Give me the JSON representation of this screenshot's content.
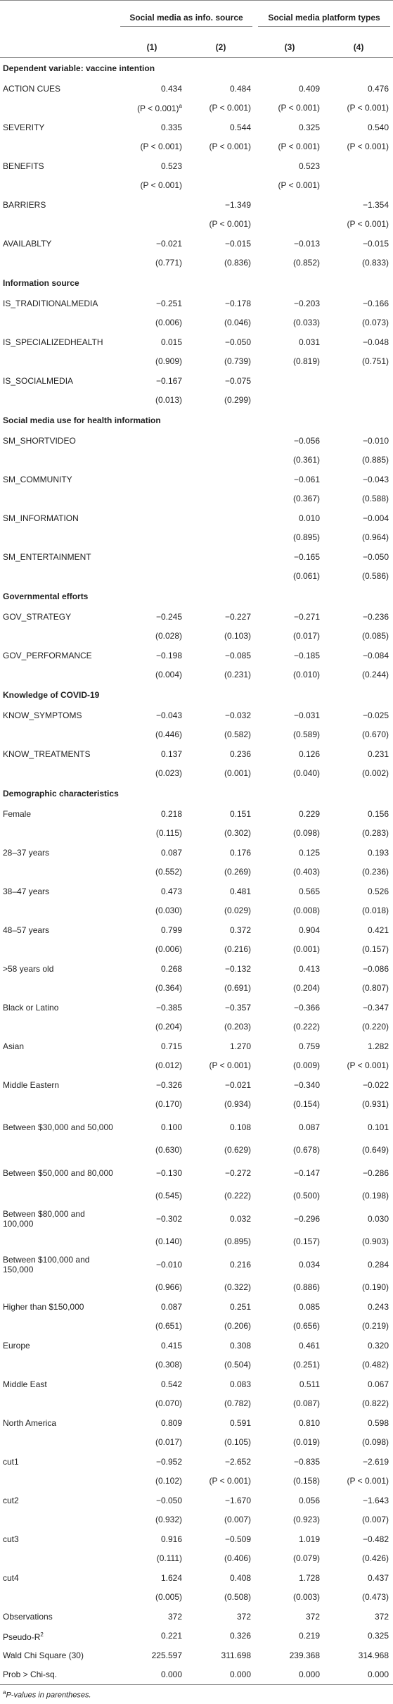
{
  "header": {
    "groups": [
      {
        "label": "Social media as info. source"
      },
      {
        "label": "Social media platform types"
      }
    ],
    "columns": [
      "(1)",
      "(2)",
      "(3)",
      "(4)"
    ]
  },
  "table": {
    "sections": [
      {
        "title": "Dependent variable: vaccine intention",
        "rows": [
          {
            "label": "ACTION CUES",
            "coef": [
              "0.434",
              "0.484",
              "0.409",
              "0.476"
            ],
            "p": [
              "(P < 0.001)",
              "(P < 0.001)",
              "(P < 0.001)",
              "(P < 0.001)"
            ],
            "p_sup": [
              "a",
              null,
              null,
              null
            ]
          },
          {
            "label": "SEVERITY",
            "coef": [
              "0.335",
              "0.544",
              "0.325",
              "0.540"
            ],
            "p": [
              "(P < 0.001)",
              "(P < 0.001)",
              "(P < 0.001)",
              "(P < 0.001)"
            ]
          },
          {
            "label": "BENEFITS",
            "coef": [
              "0.523",
              null,
              "0.523",
              null
            ],
            "p": [
              "(P < 0.001)",
              null,
              "(P < 0.001)",
              null
            ]
          },
          {
            "label": "BARRIERS",
            "coef": [
              null,
              "−1.349",
              null,
              "−1.354"
            ],
            "p": [
              null,
              "(P < 0.001)",
              null,
              "(P < 0.001)"
            ]
          },
          {
            "label": "AVAILABLTY",
            "coef": [
              "−0.021",
              "−0.015",
              "−0.013",
              "−0.015"
            ],
            "p": [
              "(0.771)",
              "(0.836)",
              "(0.852)",
              "(0.833)"
            ]
          }
        ]
      },
      {
        "title": "Information source",
        "rows": [
          {
            "label": "IS_TRADITIONALMEDIA",
            "coef": [
              "−0.251",
              "−0.178",
              "−0.203",
              "−0.166"
            ],
            "p": [
              "(0.006)",
              "(0.046)",
              "(0.033)",
              "(0.073)"
            ]
          },
          {
            "label": "IS_SPECIALIZEDHEALTH",
            "coef": [
              "0.015",
              "−0.050",
              "0.031",
              "−0.048"
            ],
            "p": [
              "(0.909)",
              "(0.739)",
              "(0.819)",
              "(0.751)"
            ]
          },
          {
            "label": "IS_SOCIALMEDIA",
            "coef": [
              "−0.167",
              "−0.075",
              null,
              null
            ],
            "p": [
              "(0.013)",
              "(0.299)",
              null,
              null
            ]
          }
        ]
      },
      {
        "title": "Social media use for health information",
        "rows": [
          {
            "label": "SM_SHORTVIDEO",
            "coef": [
              null,
              null,
              "−0.056",
              "−0.010"
            ],
            "p": [
              null,
              null,
              "(0.361)",
              "(0.885)"
            ]
          },
          {
            "label": "SM_COMMUNITY",
            "coef": [
              null,
              null,
              "−0.061",
              "−0.043"
            ],
            "p": [
              null,
              null,
              "(0.367)",
              "(0.588)"
            ]
          },
          {
            "label": "SM_INFORMATION",
            "coef": [
              null,
              null,
              "0.010",
              "−0.004"
            ],
            "p": [
              null,
              null,
              "(0.895)",
              "(0.964)"
            ]
          },
          {
            "label": "SM_ENTERTAINMENT",
            "coef": [
              null,
              null,
              "−0.165",
              "−0.050"
            ],
            "p": [
              null,
              null,
              "(0.061)",
              "(0.586)"
            ]
          }
        ]
      },
      {
        "title": "Governmental efforts",
        "rows": [
          {
            "label": "GOV_STRATEGY",
            "coef": [
              "−0.245",
              "−0.227",
              "−0.271",
              "−0.236"
            ],
            "p": [
              "(0.028)",
              "(0.103)",
              "(0.017)",
              "(0.085)"
            ]
          },
          {
            "label": "GOV_PERFORMANCE",
            "coef": [
              "−0.198",
              "−0.085",
              "−0.185",
              "−0.084"
            ],
            "p": [
              "(0.004)",
              "(0.231)",
              "(0.010)",
              "(0.244)"
            ]
          }
        ]
      },
      {
        "title": "Knowledge of COVID-19",
        "rows": [
          {
            "label": "KNOW_SYMPTOMS",
            "coef": [
              "−0.043",
              "−0.032",
              "−0.031",
              "−0.025"
            ],
            "p": [
              "(0.446)",
              "(0.582)",
              "(0.589)",
              "(0.670)"
            ]
          },
          {
            "label": "KNOW_TREATMENTS",
            "coef": [
              "0.137",
              "0.236",
              "0.126",
              "0.231"
            ],
            "p": [
              "(0.023)",
              "(0.001)",
              "(0.040)",
              "(0.002)"
            ]
          }
        ]
      },
      {
        "title": "Demographic characteristics",
        "rows": [
          {
            "label": "Female",
            "coef": [
              "0.218",
              "0.151",
              "0.229",
              "0.156"
            ],
            "p": [
              "(0.115)",
              "(0.302)",
              "(0.098)",
              "(0.283)"
            ]
          },
          {
            "label": "28–37 years",
            "coef": [
              "0.087",
              "0.176",
              "0.125",
              "0.193"
            ],
            "p": [
              "(0.552)",
              "(0.269)",
              "(0.403)",
              "(0.236)"
            ]
          },
          {
            "label": "38–47 years",
            "coef": [
              "0.473",
              "0.481",
              "0.565",
              "0.526"
            ],
            "p": [
              "(0.030)",
              "(0.029)",
              "(0.008)",
              "(0.018)"
            ]
          },
          {
            "label": "48–57 years",
            "coef": [
              "0.799",
              "0.372",
              "0.904",
              "0.421"
            ],
            "p": [
              "(0.006)",
              "(0.216)",
              "(0.001)",
              "(0.157)"
            ]
          },
          {
            "label": ">58 years old",
            "coef": [
              "0.268",
              "−0.132",
              "0.413",
              "−0.086"
            ],
            "p": [
              "(0.364)",
              "(0.691)",
              "(0.204)",
              "(0.807)"
            ]
          },
          {
            "label": "Black or Latino",
            "coef": [
              "−0.385",
              "−0.357",
              "−0.366",
              "−0.347"
            ],
            "p": [
              "(0.204)",
              "(0.203)",
              "(0.222)",
              "(0.220)"
            ]
          },
          {
            "label": "Asian",
            "coef": [
              "0.715",
              "1.270",
              "0.759",
              "1.282"
            ],
            "p": [
              "(0.012)",
              "(P < 0.001)",
              "(0.009)",
              "(P < 0.001)"
            ]
          },
          {
            "label": "Middle Eastern",
            "coef": [
              "−0.326",
              "−0.021",
              "−0.340",
              "−0.022"
            ],
            "p": [
              "(0.170)",
              "(0.934)",
              "(0.154)",
              "(0.931)"
            ]
          },
          {
            "label": "Between $30,000 and 50,000",
            "coef": [
              "0.100",
              "0.108",
              "0.087",
              "0.101"
            ],
            "p": [
              "(0.630)",
              "(0.629)",
              "(0.678)",
              "(0.649)"
            ]
          },
          {
            "label": "Between $50,000 and 80,000",
            "coef": [
              "−0.130",
              "−0.272",
              "−0.147",
              "−0.286"
            ],
            "p": [
              "(0.545)",
              "(0.222)",
              "(0.500)",
              "(0.198)"
            ]
          },
          {
            "label": "Between $80,000 and 100,000",
            "coef": [
              "−0.302",
              "0.032",
              "−0.296",
              "0.030"
            ],
            "p": [
              "(0.140)",
              "(0.895)",
              "(0.157)",
              "(0.903)"
            ]
          },
          {
            "label": "Between $100,000 and 150,000",
            "coef": [
              "−0.010",
              "0.216",
              "0.034",
              "0.284"
            ],
            "p": [
              "(0.966)",
              "(0.322)",
              "(0.886)",
              "(0.190)"
            ]
          },
          {
            "label": "Higher than $150,000",
            "coef": [
              "0.087",
              "0.251",
              "0.085",
              "0.243"
            ],
            "p": [
              "(0.651)",
              "(0.206)",
              "(0.656)",
              "(0.219)"
            ]
          },
          {
            "label": "Europe",
            "coef": [
              "0.415",
              "0.308",
              "0.461",
              "0.320"
            ],
            "p": [
              "(0.308)",
              "(0.504)",
              "(0.251)",
              "(0.482)"
            ]
          },
          {
            "label": "Middle East",
            "coef": [
              "0.542",
              "0.083",
              "0.511",
              "0.067"
            ],
            "p": [
              "(0.070)",
              "(0.782)",
              "(0.087)",
              "(0.822)"
            ]
          },
          {
            "label": "North America",
            "coef": [
              "0.809",
              "0.591",
              "0.810",
              "0.598"
            ],
            "p": [
              "(0.017)",
              "(0.105)",
              "(0.019)",
              "(0.098)"
            ]
          },
          {
            "label": "cut1",
            "coef": [
              "−0.952",
              "−2.652",
              "−0.835",
              "−2.619"
            ],
            "p": [
              "(0.102)",
              "(P < 0.001)",
              "(0.158)",
              "(P < 0.001)"
            ]
          },
          {
            "label": "cut2",
            "coef": [
              "−0.050",
              "−1.670",
              "0.056",
              "−1.643"
            ],
            "p": [
              "(0.932)",
              "(0.007)",
              "(0.923)",
              "(0.007)"
            ]
          },
          {
            "label": "cut3",
            "coef": [
              "0.916",
              "−0.509",
              "1.019",
              "−0.482"
            ],
            "p": [
              "(0.111)",
              "(0.406)",
              "(0.079)",
              "(0.426)"
            ]
          },
          {
            "label": "cut4",
            "coef": [
              "1.624",
              "0.408",
              "1.728",
              "0.437"
            ],
            "p": [
              "(0.005)",
              "(0.508)",
              "(0.003)",
              "(0.473)"
            ]
          }
        ]
      }
    ],
    "stats": [
      {
        "label": "Observations",
        "values": [
          "372",
          "372",
          "372",
          "372"
        ]
      },
      {
        "label": "Pseudo-R",
        "label_sup": "2",
        "values": [
          "0.221",
          "0.326",
          "0.219",
          "0.325"
        ]
      },
      {
        "label": "Wald Chi Square (30)",
        "values": [
          "225.597",
          "311.698",
          "239.368",
          "314.968"
        ]
      },
      {
        "label": "Prob > Chi-sq.",
        "values": [
          "0.000",
          "0.000",
          "0.000",
          "0.000"
        ]
      }
    ]
  },
  "footnote": {
    "marker": "a",
    "text": "P-values in parentheses."
  }
}
